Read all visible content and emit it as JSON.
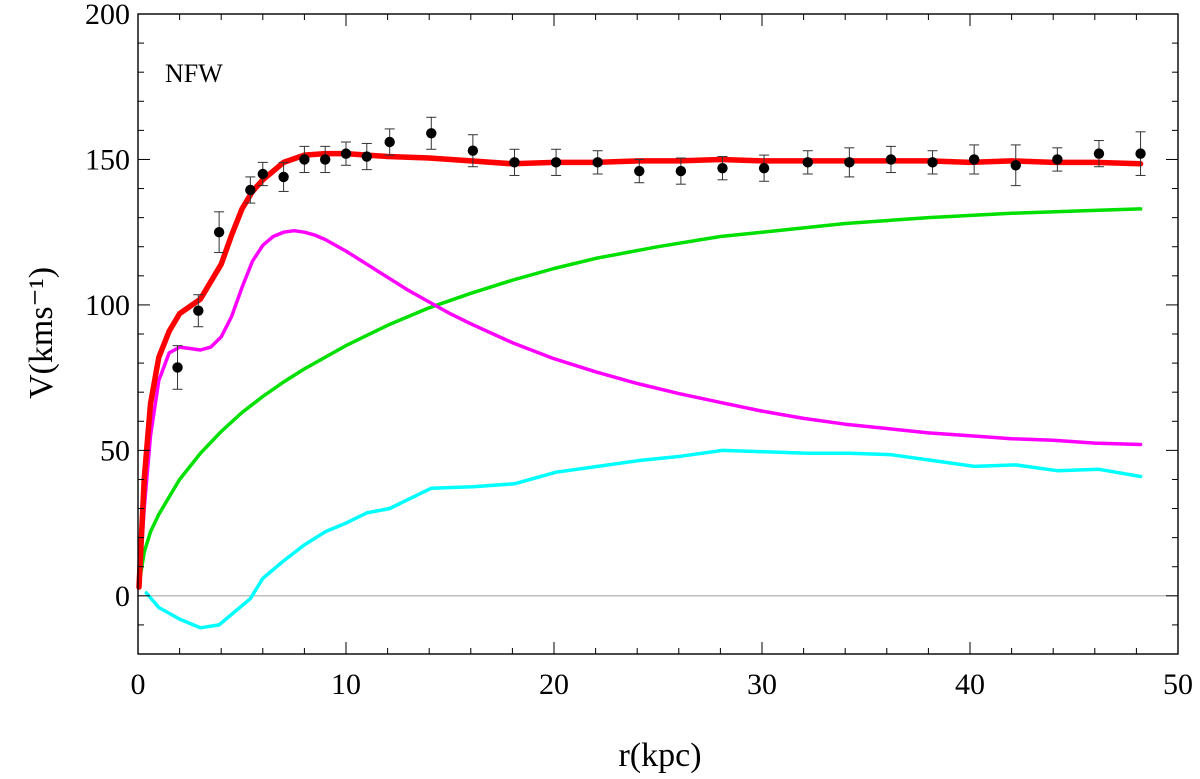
{
  "chart_data": {
    "type": "line",
    "annotation": "NFW",
    "xlabel": "r(kpc)",
    "ylabel": "V(kms⁻¹)",
    "xlim": [
      0,
      50
    ],
    "ylim": [
      -20,
      200
    ],
    "xticks": [
      0,
      10,
      20,
      30,
      40,
      50
    ],
    "yticks": [
      0,
      50,
      100,
      150,
      200
    ],
    "grid": false,
    "colors": {
      "total": "#ff0000",
      "halo": "#00e000",
      "disk": "#ff00ff",
      "gas": "#00ffff",
      "zero_line": "#aaaaaa",
      "data": "#000000"
    },
    "data_points": [
      {
        "x": 1.9,
        "y": 78.5,
        "err": 7.5
      },
      {
        "x": 2.9,
        "y": 98,
        "err": 5.5
      },
      {
        "x": 3.9,
        "y": 125,
        "err": 7
      },
      {
        "x": 5.4,
        "y": 139.5,
        "err": 4.5
      },
      {
        "x": 6.0,
        "y": 145,
        "err": 4
      },
      {
        "x": 7.0,
        "y": 144,
        "err": 5
      },
      {
        "x": 8.0,
        "y": 150,
        "err": 4.5
      },
      {
        "x": 9.0,
        "y": 150,
        "err": 4.5
      },
      {
        "x": 10.0,
        "y": 152,
        "err": 4
      },
      {
        "x": 11.0,
        "y": 151,
        "err": 4.5
      },
      {
        "x": 12.1,
        "y": 156,
        "err": 4.5
      },
      {
        "x": 14.1,
        "y": 159,
        "err": 5.5
      },
      {
        "x": 16.1,
        "y": 153,
        "err": 5.5
      },
      {
        "x": 18.1,
        "y": 149,
        "err": 4.5
      },
      {
        "x": 20.1,
        "y": 149,
        "err": 4.5
      },
      {
        "x": 22.1,
        "y": 149,
        "err": 4
      },
      {
        "x": 24.1,
        "y": 146,
        "err": 4
      },
      {
        "x": 26.1,
        "y": 146,
        "err": 4.5
      },
      {
        "x": 28.1,
        "y": 147,
        "err": 4
      },
      {
        "x": 30.1,
        "y": 147,
        "err": 4.5
      },
      {
        "x": 32.2,
        "y": 149,
        "err": 4
      },
      {
        "x": 34.2,
        "y": 149,
        "err": 5
      },
      {
        "x": 36.2,
        "y": 150,
        "err": 4.5
      },
      {
        "x": 38.2,
        "y": 149,
        "err": 4
      },
      {
        "x": 40.2,
        "y": 150,
        "err": 5
      },
      {
        "x": 42.2,
        "y": 148,
        "err": 7
      },
      {
        "x": 44.2,
        "y": 150,
        "err": 4
      },
      {
        "x": 46.2,
        "y": 152,
        "err": 4.5
      },
      {
        "x": 48.2,
        "y": 152,
        "err": 7.5
      }
    ],
    "series": [
      {
        "key": "gas",
        "x": [
          0.4,
          1.0,
          2.0,
          3.0,
          3.9,
          5.4,
          6.0,
          7.0,
          8.0,
          9.0,
          10.0,
          11.0,
          12.1,
          14.1,
          16.1,
          18.1,
          20.1,
          22.1,
          24.1,
          26.1,
          28.1,
          30.1,
          32.2,
          34.2,
          36.2,
          38.2,
          40.2,
          42.2,
          44.2,
          46.2,
          48.2
        ],
        "y": [
          1,
          -4,
          -8,
          -11,
          -10,
          -1,
          6,
          12,
          17.5,
          22,
          25,
          28.5,
          30,
          37,
          37.5,
          38.5,
          42.5,
          44.5,
          46.5,
          48,
          50,
          49.5,
          49,
          49,
          48.5,
          46.5,
          44.5,
          45,
          43,
          43.5,
          41
        ]
      },
      {
        "key": "halo",
        "x": [
          0.05,
          0.3,
          0.6,
          1.0,
          1.5,
          2,
          3,
          4,
          5,
          6,
          7,
          8,
          10,
          12,
          14,
          16,
          18,
          20,
          22,
          25,
          28,
          30,
          34,
          38,
          42,
          46,
          48.2
        ],
        "y": [
          4,
          15,
          22,
          28,
          34,
          40,
          49,
          56.5,
          63,
          68.5,
          73.5,
          78,
          86,
          93,
          99,
          104,
          108.5,
          112.5,
          116,
          120,
          123.5,
          125,
          128,
          130,
          131.5,
          132.5,
          133
        ]
      },
      {
        "key": "disk",
        "x": [
          0.05,
          0.3,
          0.6,
          1.0,
          1.5,
          2.0,
          2.5,
          3.0,
          3.5,
          4.0,
          4.5,
          5.0,
          5.5,
          6.0,
          6.5,
          7.0,
          7.5,
          8.0,
          8.5,
          9,
          10,
          11,
          12,
          13,
          14,
          15,
          16,
          18,
          20,
          22,
          24,
          26,
          28,
          30,
          32,
          34,
          36,
          38,
          40,
          42,
          44,
          46,
          48.2
        ],
        "y": [
          3,
          30,
          55,
          74,
          83.5,
          85.5,
          85,
          84.5,
          85.5,
          89,
          96,
          106,
          115,
          120.5,
          123.5,
          125,
          125.5,
          125,
          124,
          122.5,
          118.5,
          114,
          109.5,
          105,
          101,
          97,
          93.5,
          87,
          81.5,
          77,
          73,
          69.5,
          66.5,
          63.5,
          61,
          59,
          57.5,
          56,
          55,
          54,
          53.5,
          52.5,
          52
        ]
      },
      {
        "key": "total",
        "x": [
          0.05,
          0.3,
          0.6,
          1.0,
          1.5,
          2.0,
          2.5,
          3.0,
          3.5,
          4.0,
          4.5,
          5.0,
          5.5,
          6.0,
          6.5,
          7.0,
          8.0,
          9.0,
          10.0,
          11.0,
          12.0,
          14.0,
          16.0,
          18.0,
          20.0,
          22.0,
          24.0,
          26.0,
          28.0,
          30.0,
          32.0,
          34.0,
          36.0,
          38.0,
          40.0,
          42.0,
          44.0,
          46.0,
          48.2
        ],
        "y": [
          3,
          40,
          66,
          82,
          91,
          97,
          99.5,
          102,
          108,
          114,
          124,
          133,
          139,
          143,
          146,
          149,
          151.5,
          152,
          152,
          151.5,
          151,
          150.5,
          149.5,
          148.5,
          149,
          149,
          149.5,
          149.5,
          150,
          149.5,
          149.5,
          149.5,
          149.5,
          149.5,
          149,
          149.5,
          149,
          149,
          148.5
        ]
      }
    ]
  }
}
